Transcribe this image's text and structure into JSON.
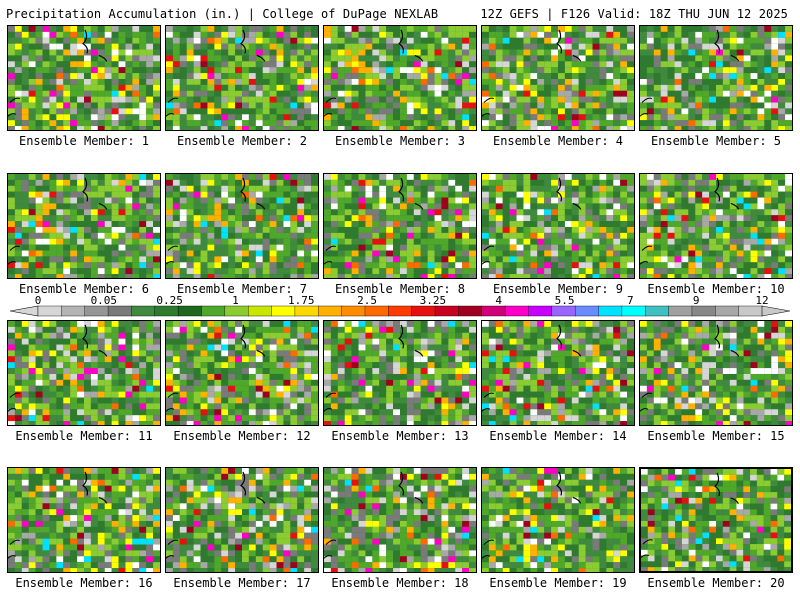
{
  "header": {
    "left": "Precipitation Accumulation (in.) | College of DuPage NEXLAB",
    "right": "12Z GEFS | F126 Valid: 18Z THU JUN 12 2025"
  },
  "members": [
    "Ensemble Member: 1",
    "Ensemble Member: 2",
    "Ensemble Member: 3",
    "Ensemble Member: 4",
    "Ensemble Member: 5",
    "Ensemble Member: 6",
    "Ensemble Member: 7",
    "Ensemble Member: 8",
    "Ensemble Member: 9",
    "Ensemble Member: 10",
    "Ensemble Member: 11",
    "Ensemble Member: 12",
    "Ensemble Member: 13",
    "Ensemble Member: 14",
    "Ensemble Member: 15",
    "Ensemble Member: 16",
    "Ensemble Member: 17",
    "Ensemble Member: 18",
    "Ensemble Member: 19",
    "Ensemble Member: 20"
  ],
  "selected_member": 20,
  "colorbar": {
    "tick_labels": [
      "0",
      "0.05",
      "0.25",
      "1",
      "1.75",
      "2.5",
      "3.25",
      "4",
      "5.5",
      "7",
      "9",
      "12"
    ],
    "colors": [
      "#d6d6d6",
      "#b4b4b4",
      "#969696",
      "#7a7a7a",
      "#3f8a3f",
      "#2f7a2f",
      "#1f661f",
      "#4fa82a",
      "#8ccc33",
      "#c8e600",
      "#ffff00",
      "#ffd700",
      "#ffb000",
      "#ff8c00",
      "#ff6a00",
      "#ff3c00",
      "#e61010",
      "#c80020",
      "#a00020",
      "#d0007a",
      "#ff00c8",
      "#c800ff",
      "#9a66ff",
      "#6a8cff",
      "#00e0ff",
      "#00ffff",
      "#40c0c0",
      "#a0a0a0",
      "#888888",
      "#a8a8a8",
      "#c8c8c8"
    ]
  }
}
